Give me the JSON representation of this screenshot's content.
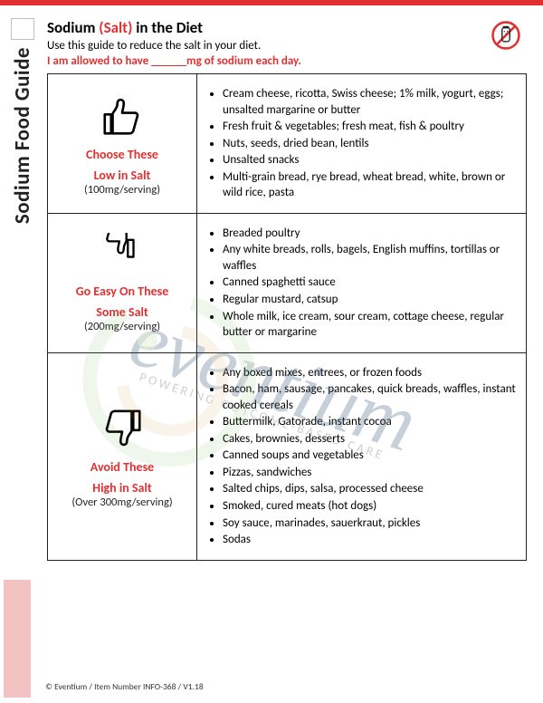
{
  "sideTitle": "Sodium Food Guide",
  "header": {
    "titlePrefix": "Sodium ",
    "titleSalt": "(Salt)",
    "titleSuffix": " in the Diet",
    "subtitle": "Use this guide to reduce the salt in your diet.",
    "allowance": "I am allowed to have ______mg of sodium each day."
  },
  "rows": [
    {
      "labelTop": "Choose These",
      "labelMid": "Low in Salt",
      "labelSub": "(100mg/serving)",
      "items": [
        "Cream cheese, ricotta, Swiss cheese; 1% milk, yogurt, eggs; unsalted margarine or butter",
        "Fresh fruit & vegetables; fresh meat, fish & poultry",
        "Nuts, seeds, dried bean, lentils",
        "Unsalted snacks",
        "Multi-grain bread, rye bread, wheat bread, white, brown or wild rice, pasta"
      ]
    },
    {
      "labelTop": "Go Easy On These",
      "labelMid": "Some Salt",
      "labelSub": "(200mg/serving)",
      "items": [
        "Breaded poultry",
        "Any white breads, rolls, bagels, English muffins, tortillas or waffles",
        "Canned spaghetti sauce",
        "Regular mustard, catsup",
        "Whole milk, ice cream, sour cream, cottage cheese, regular butter or margarine"
      ]
    },
    {
      "labelTop": "Avoid These",
      "labelMid": "High in Salt",
      "labelSub": "(Over 300mg/serving)",
      "items": [
        "Any boxed mixes, entrees, or frozen foods",
        "Bacon, ham, sausage, pancakes, quick breads, waffles, instant cooked cereals",
        "Buttermilk, Gatorade, instant cocoa",
        "Cakes, brownies, desserts",
        "Canned soups and vegetables",
        "Pizzas, sandwiches",
        "Salted chips, dips, salsa, processed cheese",
        "Smoked, cured meats (hot dogs)",
        "Soy sauce, marinades, sauerkraut, pickles",
        "Sodas"
      ]
    }
  ],
  "footer": "© Eventium / Item Number INFO-368 / V1.18",
  "watermark": {
    "main": "eventium",
    "sub": "POWERING OUTCOME-BASED CARE"
  },
  "colors": {
    "accent": "#e03131",
    "text": "#222222",
    "sideBar": "#f3c2c2"
  }
}
